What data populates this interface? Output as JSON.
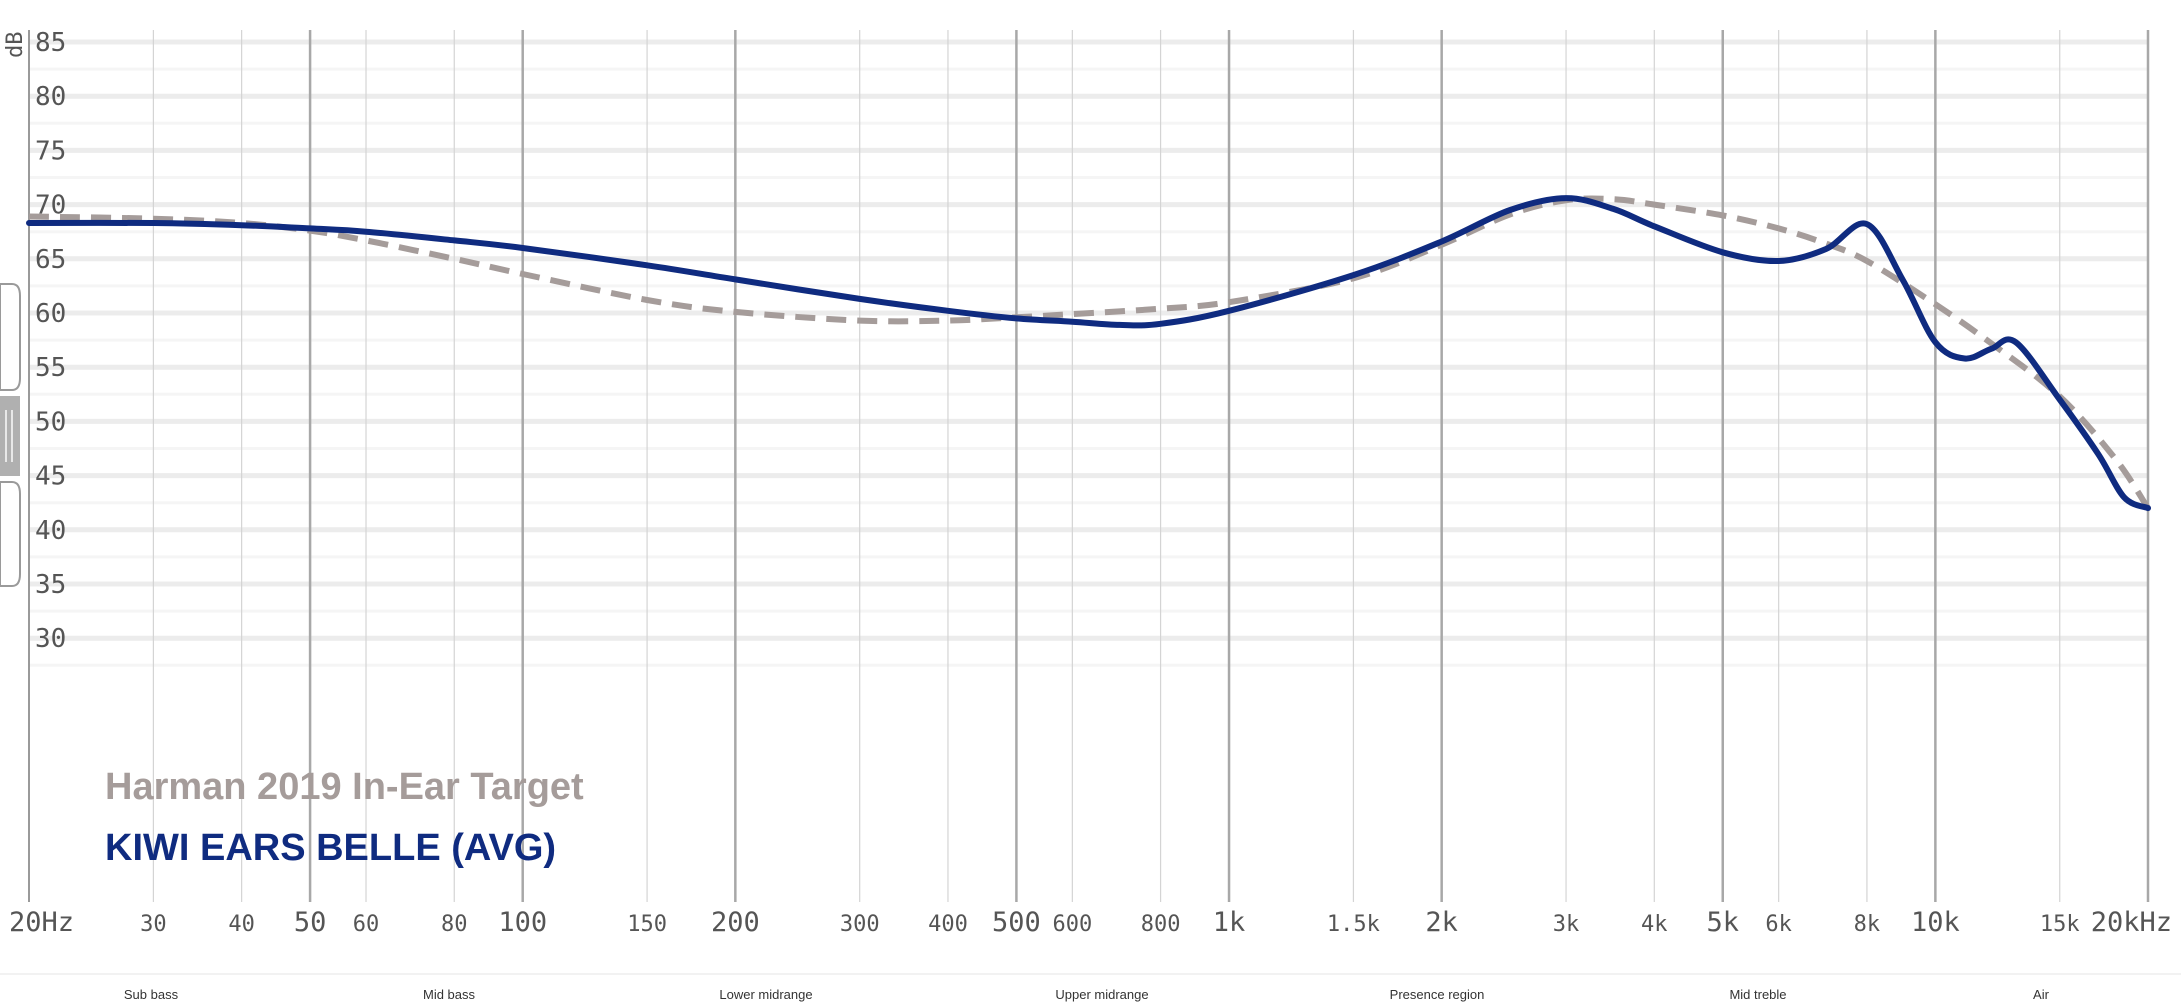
{
  "chart_data": {
    "type": "line",
    "ylabel": "dB",
    "ylim": [
      28,
      86
    ],
    "xscale": "log",
    "xlim": [
      20,
      20000
    ],
    "grid": true,
    "legend_position": "bottom-left",
    "y_ticks": [
      "85",
      "80",
      "75",
      "70",
      "65",
      "60",
      "55",
      "50",
      "45",
      "40",
      "35",
      "30"
    ],
    "x_ticks": [
      {
        "label": "20Hz",
        "freq": 20,
        "major": true
      },
      {
        "label": "30",
        "freq": 30,
        "major": false
      },
      {
        "label": "40",
        "freq": 40,
        "major": false
      },
      {
        "label": "50",
        "freq": 50,
        "major": true
      },
      {
        "label": "60",
        "freq": 60,
        "major": false
      },
      {
        "label": "80",
        "freq": 80,
        "major": false
      },
      {
        "label": "100",
        "freq": 100,
        "major": true
      },
      {
        "label": "150",
        "freq": 150,
        "major": false
      },
      {
        "label": "200",
        "freq": 200,
        "major": true
      },
      {
        "label": "300",
        "freq": 300,
        "major": false
      },
      {
        "label": "400",
        "freq": 400,
        "major": false
      },
      {
        "label": "500",
        "freq": 500,
        "major": true
      },
      {
        "label": "600",
        "freq": 600,
        "major": false
      },
      {
        "label": "800",
        "freq": 800,
        "major": false
      },
      {
        "label": "1k",
        "freq": 1000,
        "major": true
      },
      {
        "label": "1.5k",
        "freq": 1500,
        "major": false
      },
      {
        "label": "2k",
        "freq": 2000,
        "major": true
      },
      {
        "label": "3k",
        "freq": 3000,
        "major": false
      },
      {
        "label": "4k",
        "freq": 4000,
        "major": false
      },
      {
        "label": "5k",
        "freq": 5000,
        "major": true
      },
      {
        "label": "6k",
        "freq": 6000,
        "major": false
      },
      {
        "label": "8k",
        "freq": 8000,
        "major": false
      },
      {
        "label": "10k",
        "freq": 10000,
        "major": true
      },
      {
        "label": "15k",
        "freq": 15000,
        "major": false
      },
      {
        "label": "20kHz",
        "freq": 20000,
        "major": true
      }
    ],
    "bands": [
      "Sub bass",
      "Mid bass",
      "Lower midrange",
      "Upper midrange",
      "Presence region",
      "Mid treble",
      "Air"
    ],
    "series": [
      {
        "name": "Harman 2019 In-Ear Target",
        "color": "#a59c9a",
        "dashed": true,
        "points": [
          [
            20,
            68.9
          ],
          [
            30,
            68.7
          ],
          [
            40,
            68.3
          ],
          [
            50,
            67.6
          ],
          [
            60,
            66.7
          ],
          [
            80,
            65.0
          ],
          [
            100,
            63.6
          ],
          [
            150,
            61.2
          ],
          [
            200,
            60.1
          ],
          [
            300,
            59.3
          ],
          [
            400,
            59.3
          ],
          [
            500,
            59.6
          ],
          [
            600,
            59.9
          ],
          [
            800,
            60.4
          ],
          [
            1000,
            61.0
          ],
          [
            1500,
            63.2
          ],
          [
            2000,
            66.3
          ],
          [
            2500,
            69.1
          ],
          [
            3000,
            70.4
          ],
          [
            3500,
            70.5
          ],
          [
            4000,
            70.0
          ],
          [
            5000,
            69.0
          ],
          [
            6000,
            67.8
          ],
          [
            7000,
            66.4
          ],
          [
            8000,
            64.8
          ],
          [
            10000,
            60.8
          ],
          [
            12000,
            57.2
          ],
          [
            15000,
            52.3
          ],
          [
            18000,
            46.5
          ],
          [
            20000,
            42.0
          ]
        ]
      },
      {
        "name": "KIWI EARS BELLE (AVG)",
        "color": "#0f2b80",
        "dashed": false,
        "points": [
          [
            20,
            68.3
          ],
          [
            30,
            68.3
          ],
          [
            40,
            68.1
          ],
          [
            50,
            67.8
          ],
          [
            60,
            67.5
          ],
          [
            80,
            66.7
          ],
          [
            100,
            66.0
          ],
          [
            150,
            64.4
          ],
          [
            200,
            63.1
          ],
          [
            300,
            61.3
          ],
          [
            400,
            60.2
          ],
          [
            500,
            59.5
          ],
          [
            600,
            59.2
          ],
          [
            700,
            58.9
          ],
          [
            800,
            59.0
          ],
          [
            1000,
            60.2
          ],
          [
            1500,
            63.5
          ],
          [
            2000,
            66.6
          ],
          [
            2500,
            69.5
          ],
          [
            3000,
            70.6
          ],
          [
            3500,
            69.6
          ],
          [
            4000,
            68.0
          ],
          [
            5000,
            65.6
          ],
          [
            6000,
            64.8
          ],
          [
            7000,
            65.9
          ],
          [
            8000,
            68.2
          ],
          [
            9000,
            63.0
          ],
          [
            10000,
            57.3
          ],
          [
            11000,
            55.8
          ],
          [
            12000,
            56.7
          ],
          [
            13000,
            57.3
          ],
          [
            15000,
            52.0
          ],
          [
            17000,
            47.0
          ],
          [
            18500,
            43.0
          ],
          [
            20000,
            42.0
          ]
        ]
      }
    ]
  },
  "legend": {
    "target_label": "Harman 2019 In-Ear Target",
    "device_label": "KIWI EARS BELLE (AVG)"
  }
}
